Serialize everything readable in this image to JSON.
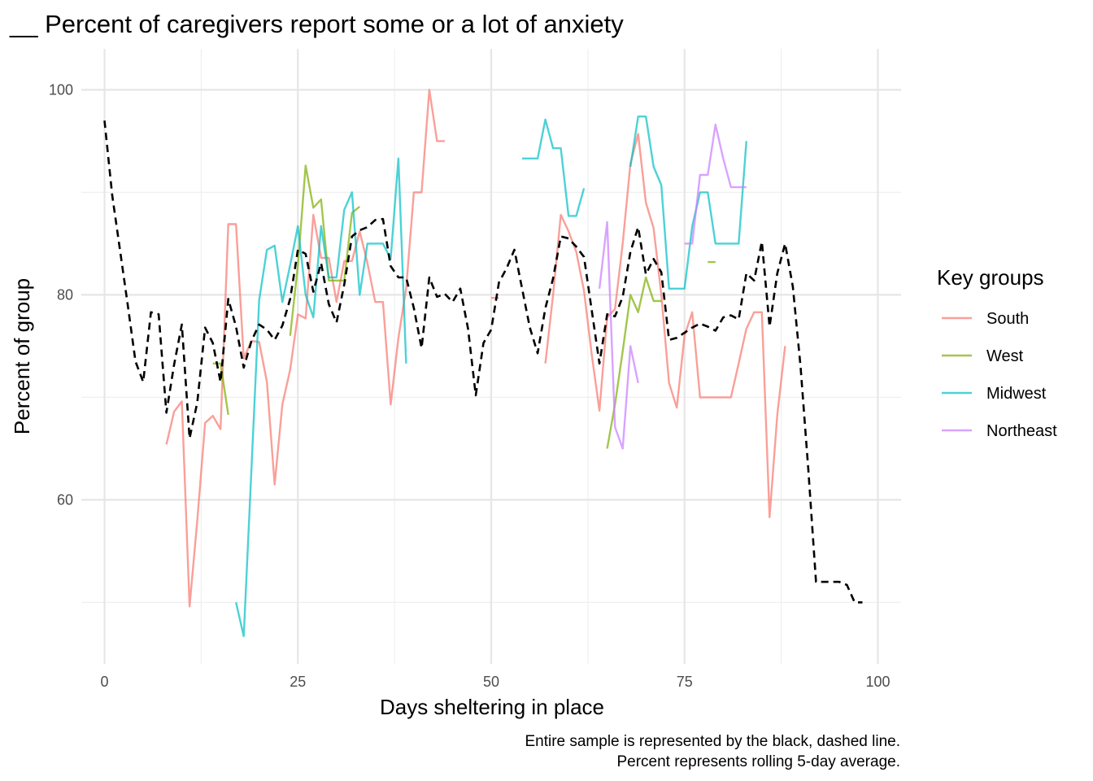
{
  "chart_data": {
    "type": "line",
    "title": "__ Percent of caregivers report some or a lot of anxiety",
    "xlabel": "Days sheltering in place",
    "ylabel": "Percent of group",
    "caption": [
      "Entire sample is represented by the black, dashed line.",
      "Percent represents rolling 5-day average."
    ],
    "xlim": [
      -3,
      103
    ],
    "ylim": [
      44,
      104
    ],
    "x_ticks": [
      0,
      25,
      50,
      75,
      100
    ],
    "x_minor_ticks": [
      12.5,
      37.5,
      62.5,
      87.5
    ],
    "y_ticks": [
      60,
      80,
      100
    ],
    "y_minor_ticks": [
      50,
      70,
      90
    ],
    "grid": true,
    "legend": {
      "title": "Key groups",
      "position": "right"
    },
    "series": [
      {
        "name": "South",
        "color": "#F8766D",
        "segments": [
          [
            [
              8,
              65.4
            ],
            [
              9,
              68.6
            ],
            [
              10,
              69.6
            ],
            [
              11,
              49.6
            ],
            [
              12,
              58.0
            ],
            [
              13,
              67.5
            ],
            [
              14,
              68.2
            ],
            [
              15,
              66.9
            ],
            [
              16,
              86.9
            ],
            [
              17,
              86.9
            ],
            [
              18,
              73.8
            ],
            [
              19,
              75.5
            ],
            [
              20,
              75.4
            ],
            [
              21,
              71.5
            ],
            [
              22,
              61.5
            ],
            [
              23,
              69.3
            ],
            [
              24,
              72.7
            ],
            [
              25,
              78.1
            ],
            [
              26,
              77.7
            ],
            [
              27,
              87.8
            ],
            [
              28,
              83.6
            ],
            [
              29,
              83.6
            ],
            [
              30,
              79.3
            ],
            [
              31,
              83.3
            ],
            [
              32,
              83.3
            ],
            [
              33,
              86.2
            ],
            [
              34,
              83.1
            ],
            [
              35,
              79.3
            ],
            [
              36,
              79.3
            ],
            [
              37,
              69.3
            ],
            [
              38,
              75.8
            ],
            [
              39,
              80.6
            ],
            [
              40,
              90.0
            ],
            [
              41,
              90.0
            ],
            [
              42,
              100.0
            ],
            [
              43,
              95.0
            ],
            [
              44,
              95.0
            ]
          ],
          [
            [
              50,
              79.7
            ],
            [
              51,
              79.7
            ]
          ],
          [
            [
              57,
              73.3
            ],
            [
              58,
              80.0
            ],
            [
              59,
              87.8
            ],
            [
              60,
              86.2
            ],
            [
              61,
              84.2
            ],
            [
              62,
              80.4
            ],
            [
              63,
              74.2
            ],
            [
              64,
              68.7
            ],
            [
              65,
              77.8
            ],
            [
              66,
              78.6
            ],
            [
              67,
              85.0
            ],
            [
              68,
              92.8
            ],
            [
              69,
              95.7
            ],
            [
              70,
              89.0
            ],
            [
              71,
              86.5
            ],
            [
              72,
              80.0
            ],
            [
              73,
              71.4
            ],
            [
              74,
              69.0
            ],
            [
              75,
              76.0
            ],
            [
              76,
              78.3
            ],
            [
              77,
              70.0
            ],
            [
              78,
              70.0
            ],
            [
              79,
              70.0
            ],
            [
              80,
              70.0
            ],
            [
              81,
              70.0
            ],
            [
              82,
              73.3
            ],
            [
              83,
              76.7
            ],
            [
              84,
              78.3
            ],
            [
              85,
              78.3
            ],
            [
              86,
              58.3
            ],
            [
              87,
              68.3
            ],
            [
              88,
              75.0
            ]
          ]
        ]
      },
      {
        "name": "West",
        "color": "#7CAE00",
        "segments": [
          [
            [
              14,
              73.3
            ],
            [
              15,
              73.3
            ],
            [
              16,
              68.3
            ]
          ],
          [
            [
              24,
              76.0
            ],
            [
              25,
              82.9
            ],
            [
              26,
              92.6
            ],
            [
              27,
              88.5
            ],
            [
              28,
              89.3
            ],
            [
              29,
              81.4
            ],
            [
              30,
              81.4
            ],
            [
              31,
              81.4
            ],
            [
              32,
              88.0
            ],
            [
              33,
              88.6
            ]
          ],
          [
            [
              65,
              65.0
            ],
            [
              66,
              69.3
            ],
            [
              67,
              74.5
            ],
            [
              68,
              80.0
            ],
            [
              69,
              78.3
            ],
            [
              70,
              81.7
            ],
            [
              71,
              79.4
            ],
            [
              72,
              79.4
            ]
          ],
          [
            [
              78,
              83.2
            ],
            [
              79,
              83.2
            ]
          ]
        ]
      },
      {
        "name": "Midwest",
        "color": "#00BFC4",
        "segments": [
          [
            [
              17,
              50.0
            ],
            [
              18,
              46.7
            ],
            [
              19,
              63.0
            ],
            [
              20,
              79.5
            ],
            [
              21,
              84.4
            ],
            [
              22,
              84.8
            ],
            [
              23,
              79.3
            ],
            [
              24,
              82.9
            ],
            [
              25,
              86.7
            ],
            [
              26,
              80.0
            ],
            [
              27,
              77.8
            ],
            [
              28,
              86.7
            ],
            [
              29,
              81.7
            ],
            [
              30,
              81.7
            ],
            [
              31,
              88.3
            ],
            [
              32,
              90.0
            ],
            [
              33,
              80.0
            ],
            [
              34,
              85.0
            ],
            [
              35,
              85.0
            ],
            [
              36,
              85.0
            ],
            [
              37,
              83.5
            ],
            [
              38,
              93.3
            ],
            [
              39,
              73.3
            ]
          ],
          [
            [
              54,
              93.3
            ],
            [
              55,
              93.3
            ],
            [
              56,
              93.3
            ],
            [
              57,
              97.1
            ],
            [
              58,
              94.3
            ],
            [
              59,
              94.3
            ],
            [
              60,
              87.7
            ],
            [
              61,
              87.7
            ],
            [
              62,
              90.4
            ]
          ],
          [
            [
              68,
              92.5
            ],
            [
              69,
              97.4
            ],
            [
              70,
              97.4
            ],
            [
              71,
              92.5
            ],
            [
              72,
              90.7
            ],
            [
              73,
              80.6
            ],
            [
              74,
              80.6
            ],
            [
              75,
              80.6
            ],
            [
              76,
              86.7
            ],
            [
              77,
              90.0
            ],
            [
              78,
              90.0
            ],
            [
              79,
              85.0
            ],
            [
              80,
              85.0
            ],
            [
              81,
              85.0
            ],
            [
              82,
              85.0
            ],
            [
              83,
              95.0
            ]
          ]
        ]
      },
      {
        "name": "Northeast",
        "color": "#C77CFF",
        "segments": [
          [
            [
              64,
              80.6
            ],
            [
              65,
              87.1
            ],
            [
              66,
              67.1
            ],
            [
              67,
              65.0
            ],
            [
              68,
              75.0
            ],
            [
              69,
              71.4
            ]
          ],
          [
            [
              75,
              85.0
            ],
            [
              76,
              85.0
            ],
            [
              77,
              91.7
            ],
            [
              78,
              91.7
            ],
            [
              79,
              96.6
            ],
            [
              80,
              93.3
            ],
            [
              81,
              90.5
            ],
            [
              82,
              90.5
            ],
            [
              83,
              90.5
            ]
          ]
        ]
      },
      {
        "name": "",
        "color": "#000000",
        "dashed": true,
        "segments": [
          [
            [
              0,
              97.0
            ],
            [
              1,
              89.7
            ],
            [
              2,
              84.4
            ],
            [
              3,
              79.0
            ],
            [
              4,
              73.5
            ],
            [
              5,
              71.5
            ],
            [
              6,
              78.3
            ],
            [
              7,
              78.1
            ],
            [
              8,
              68.5
            ],
            [
              9,
              73.2
            ],
            [
              10,
              77.1
            ],
            [
              11,
              66.0
            ],
            [
              12,
              69.5
            ],
            [
              13,
              76.8
            ],
            [
              14,
              75.3
            ],
            [
              15,
              71.5
            ],
            [
              16,
              79.6
            ],
            [
              17,
              76.9
            ],
            [
              18,
              72.9
            ],
            [
              19,
              75.5
            ],
            [
              20,
              77.1
            ],
            [
              21,
              76.6
            ],
            [
              22,
              75.6
            ],
            [
              23,
              77.0
            ],
            [
              24,
              79.6
            ],
            [
              25,
              84.4
            ],
            [
              26,
              84.0
            ],
            [
              27,
              80.3
            ],
            [
              28,
              83.1
            ],
            [
              29,
              79.1
            ],
            [
              30,
              77.3
            ],
            [
              31,
              81.0
            ],
            [
              32,
              85.7
            ],
            [
              33,
              86.3
            ],
            [
              34,
              86.6
            ],
            [
              35,
              87.3
            ],
            [
              36,
              87.4
            ],
            [
              37,
              82.8
            ],
            [
              38,
              81.7
            ],
            [
              39,
              81.7
            ],
            [
              40,
              78.7
            ],
            [
              41,
              74.8
            ],
            [
              42,
              81.7
            ],
            [
              43,
              79.8
            ],
            [
              44,
              80.1
            ],
            [
              45,
              79.3
            ],
            [
              46,
              80.6
            ],
            [
              47,
              76.7
            ],
            [
              48,
              70.2
            ],
            [
              49,
              75.3
            ],
            [
              50,
              76.6
            ],
            [
              51,
              81.2
            ],
            [
              52,
              82.6
            ],
            [
              53,
              84.4
            ],
            [
              54,
              80.6
            ],
            [
              55,
              76.8
            ],
            [
              56,
              74.3
            ],
            [
              57,
              78.7
            ],
            [
              58,
              81.6
            ],
            [
              59,
              85.7
            ],
            [
              60,
              85.5
            ],
            [
              61,
              84.7
            ],
            [
              62,
              83.7
            ],
            [
              63,
              78.5
            ],
            [
              64,
              73.3
            ],
            [
              65,
              78.1
            ],
            [
              66,
              77.9
            ],
            [
              67,
              79.8
            ],
            [
              68,
              84.2
            ],
            [
              69,
              86.6
            ],
            [
              70,
              82.0
            ],
            [
              71,
              83.5
            ],
            [
              72,
              82.2
            ],
            [
              73,
              75.6
            ],
            [
              74,
              75.8
            ],
            [
              75,
              76.3
            ],
            [
              76,
              76.8
            ],
            [
              77,
              77.2
            ],
            [
              78,
              76.9
            ],
            [
              79,
              76.5
            ],
            [
              80,
              77.8
            ],
            [
              81,
              78.0
            ],
            [
              82,
              77.6
            ],
            [
              83,
              82.1
            ],
            [
              84,
              81.4
            ],
            [
              85,
              85.2
            ],
            [
              86,
              76.9
            ],
            [
              87,
              82.1
            ],
            [
              88,
              85.0
            ],
            [
              89,
              80.8
            ],
            [
              90,
              73.0
            ],
            [
              91,
              63.0
            ],
            [
              92,
              52.0
            ],
            [
              93,
              52.0
            ],
            [
              94,
              52.0
            ],
            [
              95,
              52.0
            ],
            [
              96,
              51.7
            ],
            [
              97,
              50.0
            ],
            [
              98,
              50.0
            ]
          ]
        ]
      }
    ]
  }
}
